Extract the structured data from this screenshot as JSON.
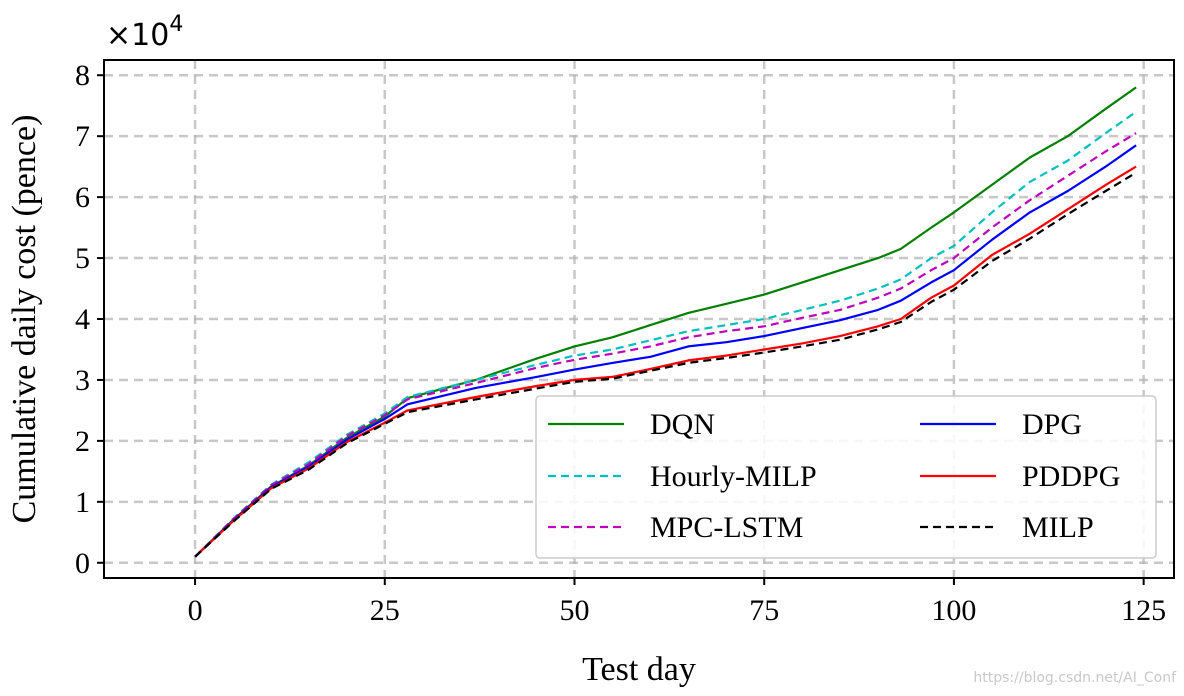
{
  "chart_data": {
    "type": "line",
    "xlabel": "Test day",
    "ylabel": "Cumulative daily cost (pence)",
    "scale_label": "×10",
    "scale_exponent": "4",
    "xlim": [
      -12,
      129
    ],
    "ylim": [
      -0.25,
      8.25
    ],
    "xticks": [
      0,
      25,
      50,
      75,
      100,
      125
    ],
    "yticks": [
      0,
      1,
      2,
      3,
      4,
      5,
      6,
      7,
      8
    ],
    "grid": true,
    "legend_position": "lower-right",
    "legend_columns": 2,
    "x": [
      0,
      5,
      10,
      15,
      20,
      25,
      28,
      37,
      45,
      50,
      55,
      60,
      65,
      70,
      75,
      80,
      85,
      90,
      93,
      97,
      100,
      105,
      110,
      115,
      120,
      124
    ],
    "series": [
      {
        "name": "DQN",
        "color": "#008000",
        "dash": "solid",
        "values": [
          0.1,
          0.7,
          1.25,
          1.6,
          2.05,
          2.4,
          2.7,
          3.0,
          3.35,
          3.55,
          3.7,
          3.9,
          4.1,
          4.25,
          4.4,
          4.6,
          4.8,
          5.0,
          5.15,
          5.5,
          5.75,
          6.2,
          6.65,
          7.0,
          7.45,
          7.8
        ]
      },
      {
        "name": "Hourly-MILP",
        "color": "#00bfbf",
        "dash": "dashed",
        "values": [
          0.1,
          0.72,
          1.28,
          1.65,
          2.1,
          2.45,
          2.72,
          3.0,
          3.25,
          3.4,
          3.5,
          3.65,
          3.8,
          3.9,
          4.0,
          4.15,
          4.3,
          4.5,
          4.65,
          5.0,
          5.2,
          5.75,
          6.25,
          6.6,
          7.05,
          7.4
        ]
      },
      {
        "name": "MPC-LSTM",
        "color": "#bf00bf",
        "dash": "dashed",
        "values": [
          0.1,
          0.71,
          1.27,
          1.62,
          2.08,
          2.42,
          2.68,
          2.95,
          3.2,
          3.33,
          3.43,
          3.55,
          3.7,
          3.8,
          3.88,
          4.02,
          4.15,
          4.35,
          4.5,
          4.8,
          5.0,
          5.5,
          5.95,
          6.35,
          6.75,
          7.05
        ]
      },
      {
        "name": "DPG",
        "color": "#0000ff",
        "dash": "solid",
        "values": [
          0.1,
          0.69,
          1.24,
          1.58,
          2.02,
          2.36,
          2.6,
          2.87,
          3.05,
          3.17,
          3.28,
          3.38,
          3.55,
          3.62,
          3.72,
          3.85,
          3.98,
          4.15,
          4.3,
          4.6,
          4.8,
          5.3,
          5.75,
          6.1,
          6.5,
          6.85
        ]
      },
      {
        "name": "PDDPG",
        "color": "#ff0000",
        "dash": "solid",
        "values": [
          0.1,
          0.68,
          1.22,
          1.55,
          1.98,
          2.3,
          2.5,
          2.72,
          2.9,
          3.0,
          3.05,
          3.18,
          3.32,
          3.4,
          3.5,
          3.6,
          3.72,
          3.88,
          4.0,
          4.35,
          4.55,
          5.05,
          5.4,
          5.8,
          6.2,
          6.5
        ]
      },
      {
        "name": "MILP",
        "color": "#000000",
        "dash": "dashed",
        "values": [
          0.1,
          0.67,
          1.21,
          1.53,
          1.96,
          2.28,
          2.47,
          2.68,
          2.86,
          2.97,
          3.02,
          3.15,
          3.28,
          3.36,
          3.45,
          3.55,
          3.66,
          3.83,
          3.95,
          4.28,
          4.48,
          4.95,
          5.32,
          5.72,
          6.1,
          6.4
        ]
      }
    ]
  },
  "watermark": "https://blog.csdn.net/AI_Conf"
}
